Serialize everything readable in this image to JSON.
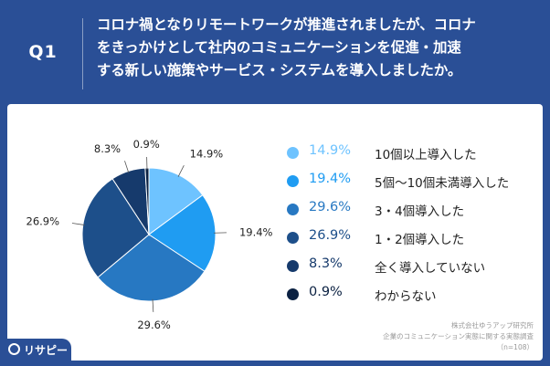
{
  "header": {
    "question_no": "Q1",
    "question_lines": [
      "コロナ禍となりリモートワークが推進されましたが、コロナ",
      "をきっかけとして社内のコミュニケーションを促進・加速",
      "する新しい施策やサービス・システムを導入しましたか。"
    ]
  },
  "chart_data": {
    "type": "pie",
    "title": "",
    "slices": [
      {
        "label": "10個以上導入した",
        "value": 14.9,
        "display": "14.9%",
        "color": "#6ec3ff"
      },
      {
        "label": "5個〜10個未満導入した",
        "value": 19.4,
        "display": "19.4%",
        "color": "#1f9cf2"
      },
      {
        "label": "3・4個導入した",
        "value": 29.6,
        "display": "29.6%",
        "color": "#2778c2"
      },
      {
        "label": "1・2個導入した",
        "value": 26.9,
        "display": "26.9%",
        "color": "#1d4f8a"
      },
      {
        "label": "全く導入していない",
        "value": 8.3,
        "display": "8.3%",
        "color": "#163a6c"
      },
      {
        "label": "わからない",
        "value": 0.9,
        "display": "0.9%",
        "color": "#0b2142"
      }
    ],
    "start": "top",
    "direction": "clockwise",
    "legend_position": "right"
  },
  "source": {
    "line1": "株式会社ゆうアップ研究所",
    "line2": "企業のコミュニケーション実態に関する実態調査",
    "line3": "（n=108）"
  },
  "brand": {
    "name": "リサピー"
  }
}
